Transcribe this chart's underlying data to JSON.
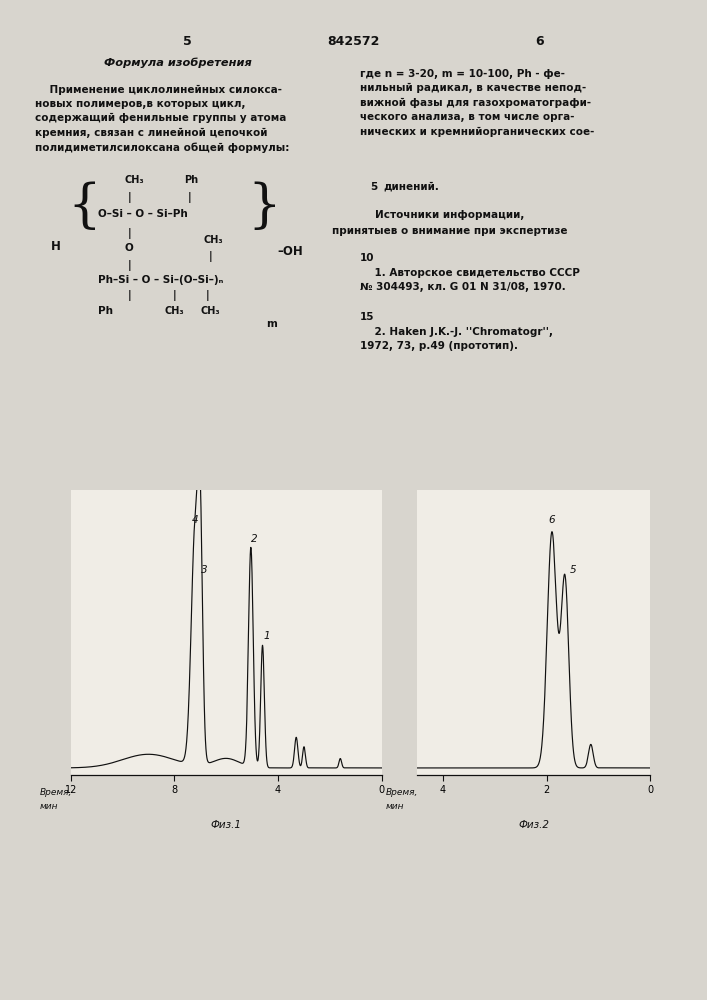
{
  "bg_color": "#d8d5ce",
  "page_color": "#f0ede6",
  "text_color": "#111111",
  "patent_num": "842572",
  "page_left": "5",
  "page_right": "6",
  "fig1_caption": "Физ.1",
  "fig2_caption": "Физ.2",
  "fig1_xlabel1": "Время,",
  "fig1_xlabel2": "мин",
  "fig2_xlabel1": "Время,",
  "fig2_xlabel2": "мин",
  "left_col_title": "Формула изобретения",
  "left_col_body": "    Применение циклолинейных силокса-\nновых полимеров,в которых цикл,\nсодержащий фенильные группы у атома\nкремния, связан с линейной цепочкой\nполидиметилсилоксана общей формулы:",
  "right_col_text1": "где n = 3-20, m = 10-100, Ph - фе-\nнильный радикал, в качестве непод-\nвижной фазы для газохроматографи-\nческого анализа, в том числе орга-\nнических и кремнийорганических сое-",
  "right_num5": "5",
  "right_col_text2": "динений.",
  "right_col_src_hdr1": "Источники информации,",
  "right_col_src_hdr2": "принятыев о внимание при экспертизе",
  "right_num10": "10",
  "right_col_src1": "    1. Авторское свидетельство СССР\n№ 304493, кл. G 01 N 31/08, 1970.",
  "right_num15": "15",
  "right_col_src2": "    2. Haken J.K.-J. ''Chromatogr'',\n1972, 73, p.49 (прототип)."
}
